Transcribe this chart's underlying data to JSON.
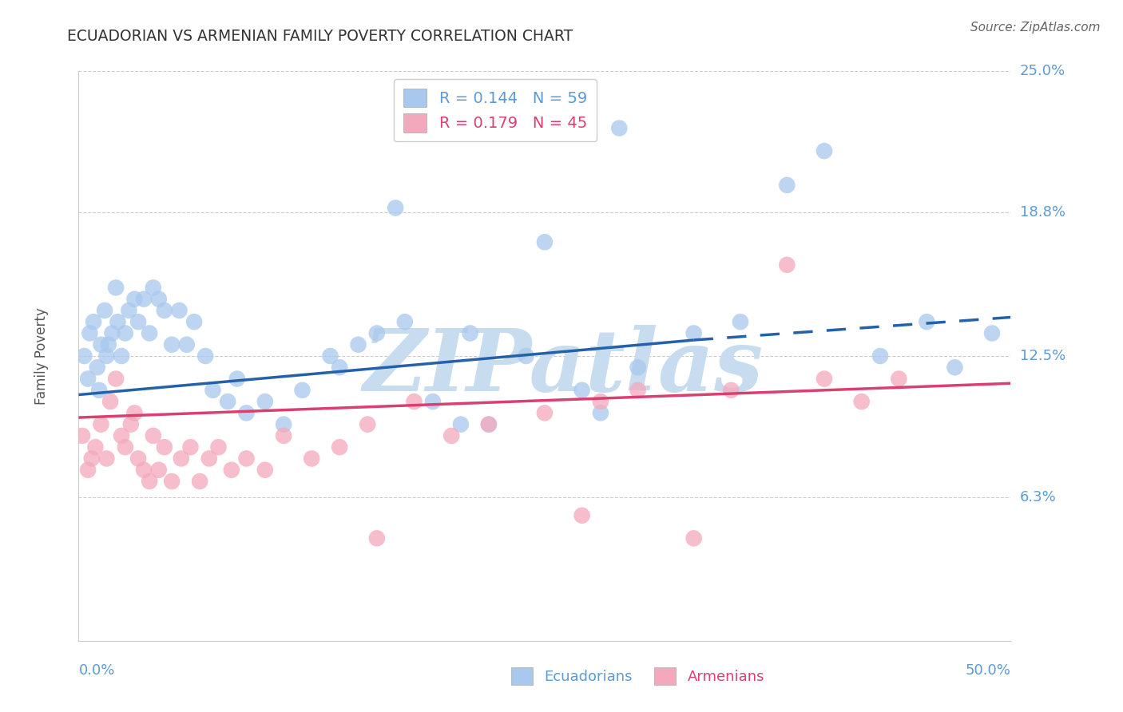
{
  "title": "ECUADORIAN VS ARMENIAN FAMILY POVERTY CORRELATION CHART",
  "source": "Source: ZipAtlas.com",
  "ylabel": "Family Poverty",
  "xmin": 0.0,
  "xmax": 50.0,
  "ymin": 0.0,
  "ymax": 25.0,
  "ytick_vals": [
    6.3,
    12.5,
    18.8,
    25.0
  ],
  "ytick_labels": [
    "6.3%",
    "12.5%",
    "18.8%",
    "25.0%"
  ],
  "color_blue": "#A8C8EE",
  "color_pink": "#F4A8BC",
  "line_blue": "#2461A8",
  "line_pink": "#D94070",
  "watermark": "ZIPatlas",
  "watermark_color": "#C8DCF0",
  "legend1_r": "0.144",
  "legend1_n": "59",
  "legend2_r": "0.179",
  "legend2_n": "45",
  "ecuadorians_x": [
    0.3,
    0.5,
    0.6,
    0.8,
    1.0,
    1.1,
    1.2,
    1.4,
    1.5,
    1.6,
    1.8,
    2.0,
    2.1,
    2.3,
    2.5,
    2.7,
    3.0,
    3.2,
    3.5,
    3.8,
    4.0,
    4.3,
    4.6,
    5.0,
    5.4,
    5.8,
    6.2,
    6.8,
    7.2,
    8.0,
    8.5,
    9.0,
    10.0,
    11.0,
    12.0,
    13.5,
    15.0,
    16.0,
    17.5,
    19.0,
    20.5,
    22.0,
    24.0,
    27.0,
    28.0,
    30.0,
    33.0,
    35.5,
    40.0,
    43.0,
    45.5,
    47.0,
    49.0,
    14.0,
    17.0,
    21.0,
    25.0,
    29.0,
    38.0
  ],
  "ecuadorians_y": [
    12.5,
    11.5,
    13.5,
    14.0,
    12.0,
    11.0,
    13.0,
    14.5,
    12.5,
    13.0,
    13.5,
    15.5,
    14.0,
    12.5,
    13.5,
    14.5,
    15.0,
    14.0,
    15.0,
    13.5,
    15.5,
    15.0,
    14.5,
    13.0,
    14.5,
    13.0,
    14.0,
    12.5,
    11.0,
    10.5,
    11.5,
    10.0,
    10.5,
    9.5,
    11.0,
    12.5,
    13.0,
    13.5,
    14.0,
    10.5,
    9.5,
    9.5,
    12.5,
    11.0,
    10.0,
    12.0,
    13.5,
    14.0,
    21.5,
    12.5,
    14.0,
    12.0,
    13.5,
    12.0,
    19.0,
    13.5,
    17.5,
    22.5,
    20.0
  ],
  "armenians_x": [
    0.2,
    0.5,
    0.7,
    0.9,
    1.2,
    1.5,
    1.7,
    2.0,
    2.3,
    2.5,
    2.8,
    3.0,
    3.2,
    3.5,
    3.8,
    4.0,
    4.3,
    4.6,
    5.0,
    5.5,
    6.0,
    6.5,
    7.0,
    7.5,
    8.2,
    9.0,
    10.0,
    11.0,
    12.5,
    14.0,
    15.5,
    18.0,
    20.0,
    22.0,
    25.0,
    28.0,
    30.0,
    35.0,
    38.0,
    40.0,
    42.0,
    44.0,
    33.0,
    27.0,
    16.0
  ],
  "armenians_y": [
    9.0,
    7.5,
    8.0,
    8.5,
    9.5,
    8.0,
    10.5,
    11.5,
    9.0,
    8.5,
    9.5,
    10.0,
    8.0,
    7.5,
    7.0,
    9.0,
    7.5,
    8.5,
    7.0,
    8.0,
    8.5,
    7.0,
    8.0,
    8.5,
    7.5,
    8.0,
    7.5,
    9.0,
    8.0,
    8.5,
    9.5,
    10.5,
    9.0,
    9.5,
    10.0,
    10.5,
    11.0,
    11.0,
    16.5,
    11.5,
    10.5,
    11.5,
    4.5,
    5.5,
    4.5
  ],
  "blue_solid_x0": 0.0,
  "blue_solid_x1": 33.0,
  "blue_dashed_x0": 33.0,
  "blue_dashed_x1": 50.0,
  "blue_y0": 10.8,
  "blue_y1_solid": 13.2,
  "blue_y1_dashed": 14.2,
  "pink_y0": 9.8,
  "pink_y1": 11.3
}
